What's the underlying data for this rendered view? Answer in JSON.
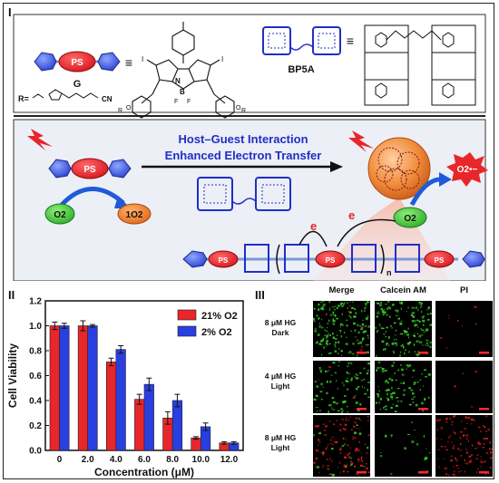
{
  "panel_labels": {
    "one": "I",
    "two": "II",
    "three": "III"
  },
  "top": {
    "ps_label": "PS",
    "guest_name": "G",
    "host_name": "BP5A",
    "r_prefix": "R=",
    "r_tail": "CN",
    "structure_atoms": {
      "n": "N",
      "b": "B",
      "f1": "F",
      "f2": "F",
      "i1": "I",
      "i2": "I",
      "o1": "O",
      "o2": "O",
      "r1": "R",
      "r2": "R"
    },
    "equals": "≡"
  },
  "middle": {
    "arrow_line1": "Host–Guest Interaction",
    "arrow_line2": "Enhanced Electron Transfer",
    "o2": "O2",
    "singlet_o2": "1O2",
    "superoxide": "O2•−",
    "electron": "e",
    "subscript_n": "n"
  },
  "chart_data": {
    "type": "bar",
    "xlabel": "Concentration (μM)",
    "ylabel": "Cell Viability",
    "categories": [
      "0",
      "2.0",
      "4.0",
      "6.0",
      "8.0",
      "10.0",
      "12.0"
    ],
    "ylim": [
      0.0,
      1.2
    ],
    "yticks": [
      "0.0",
      "0.2",
      "0.4",
      "0.6",
      "0.8",
      "1.0",
      "1.2"
    ],
    "legend_position": "top-right",
    "series": [
      {
        "name": "21% O2",
        "color": "#e8262b",
        "values": [
          1.0,
          1.0,
          0.71,
          0.41,
          0.26,
          0.1,
          0.06
        ],
        "errors": [
          0.03,
          0.04,
          0.03,
          0.04,
          0.05,
          0.01,
          0.01
        ]
      },
      {
        "name": "2% O2",
        "color": "#2a3fe0",
        "values": [
          1.0,
          1.0,
          0.81,
          0.53,
          0.4,
          0.19,
          0.06
        ],
        "errors": [
          0.02,
          0.01,
          0.03,
          0.05,
          0.05,
          0.03,
          0.01
        ]
      }
    ]
  },
  "micro": {
    "columns": [
      "Merge",
      "Calcein AM",
      "PI"
    ],
    "rows": [
      {
        "line1": "8 μM HG",
        "line2": "Dark"
      },
      {
        "line1": "4 μM HG",
        "line2": "Light"
      },
      {
        "line1": "8 μM HG",
        "line2": "Light"
      }
    ],
    "colors": {
      "live": "#39d12a",
      "dead": "#e0201c",
      "scale_bar": "#ff2a2a"
    }
  }
}
